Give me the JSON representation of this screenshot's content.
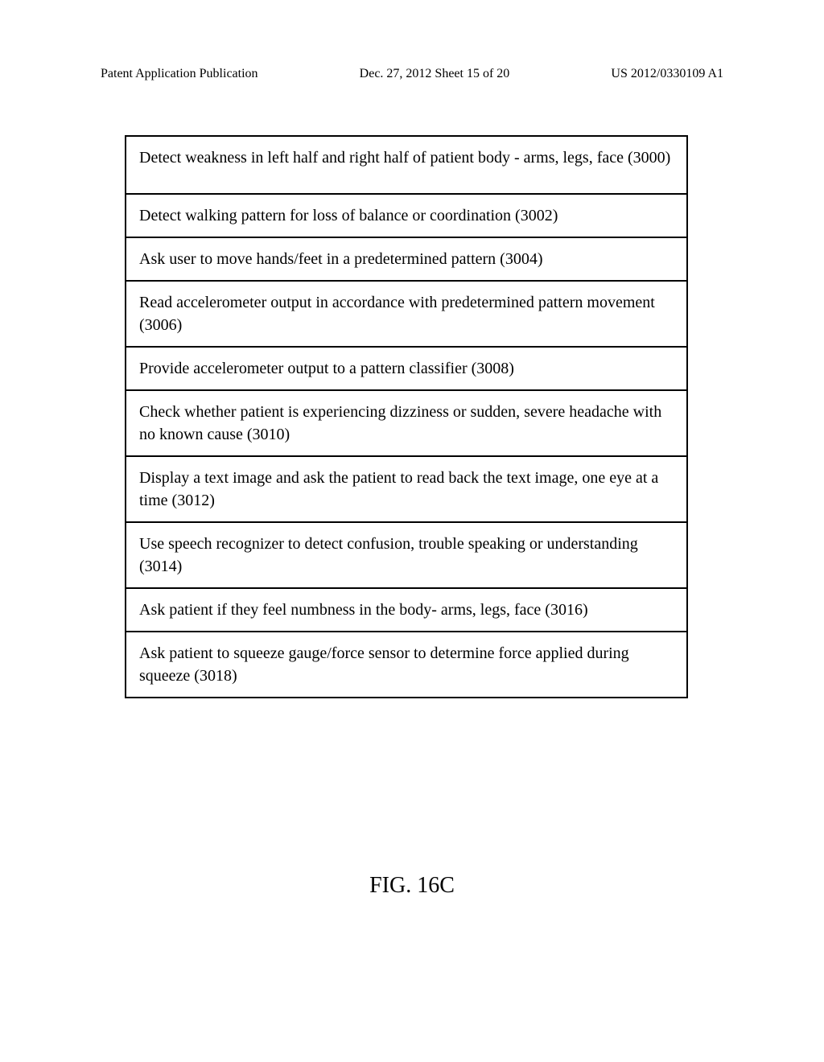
{
  "header": {
    "left": "Patent Application Publication",
    "center": "Dec. 27, 2012  Sheet 15 of 20",
    "right": "US 2012/0330109 A1"
  },
  "flowchart": {
    "boxes": [
      {
        "text": "Detect weakness in left half and right half of patient body - arms, legs, face (3000)",
        "lines": 2
      },
      {
        "text": "Detect walking pattern for loss of balance or coordination (3002)",
        "lines": 1
      },
      {
        "text": "Ask user to move hands/feet in a predetermined pattern (3004)",
        "lines": 1
      },
      {
        "text": "Read accelerometer output in accordance with predetermined pattern movement (3006)",
        "lines": 2
      },
      {
        "text": "Provide accelerometer output to a pattern classifier (3008)",
        "lines": 1
      },
      {
        "text": "Check whether patient is experiencing dizziness or sudden, severe headache with no known cause (3010)",
        "lines": 2
      },
      {
        "text": "Display a text image and ask the patient to read back the text image, one eye at a time (3012)",
        "lines": 2
      },
      {
        "text": "Use speech recognizer to detect confusion, trouble speaking or understanding (3014)",
        "lines": 2
      },
      {
        "text": "Ask patient if they feel numbness in the body- arms, legs, face (3016)",
        "lines": 1
      },
      {
        "text": "Ask patient to squeeze gauge/force sensor to determine force applied during squeeze (3018)",
        "lines": 2
      }
    ]
  },
  "figure_label": "FIG. 16C",
  "styling": {
    "background_color": "#ffffff",
    "border_color": "#000000",
    "text_color": "#000000",
    "font_family": "Times New Roman",
    "header_fontsize": 19,
    "box_fontsize": 20,
    "figure_label_fontsize": 28,
    "border_width": 2
  }
}
